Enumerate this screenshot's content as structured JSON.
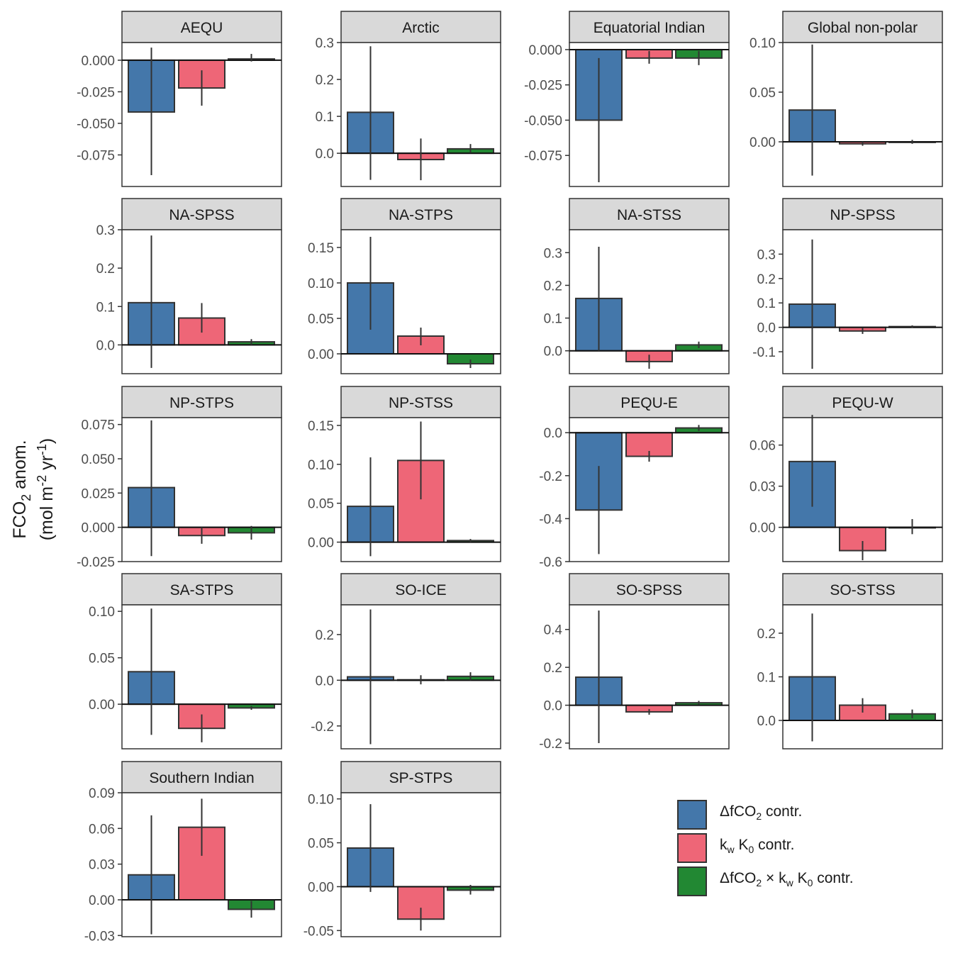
{
  "colors": {
    "dfco2": "#4477AA",
    "kwk0": "#EE6677",
    "interaction": "#228833",
    "strip_bg": "#D9D9D9",
    "frame": "#333333",
    "errorbar": "#333333"
  },
  "y_axis_title": {
    "line1": "FCO",
    "line1_sub": "2",
    "line1_rest": " anom.",
    "line2": "(mol m",
    "line2_sup1": "-2",
    "line2_mid": " yr",
    "line2_sup2": "-1",
    "line2_end": ")"
  },
  "legend": {
    "items": [
      {
        "key": "dfco2",
        "html": "ΔfCO<sub>2</sub> contr."
      },
      {
        "key": "kwk0",
        "html": "k<sub>w</sub> K<sub>0</sub> contr."
      },
      {
        "key": "interaction",
        "html": "ΔfCO<sub>2</sub> × k<sub>w</sub> K<sub>0</sub> contr."
      }
    ]
  },
  "chart_data": {
    "type": "bar",
    "series_names": [
      "ΔfCO2 contr.",
      "kw K0 contr.",
      "ΔfCO2 × kw K0 contr."
    ],
    "panels": [
      {
        "title": "AEQU",
        "ylim": [
          -0.1,
          0.014
        ],
        "ticks": [
          "0.000",
          "-0.025",
          "-0.050",
          "-0.075"
        ],
        "tick_values": [
          0,
          -0.025,
          -0.05,
          -0.075
        ],
        "values": [
          -0.041,
          -0.022,
          0.001
        ],
        "err_low": [
          -0.091,
          -0.036,
          -0.001
        ],
        "err_high": [
          0.01,
          -0.008,
          0.005
        ]
      },
      {
        "title": "Arctic",
        "ylim": [
          -0.09,
          0.3
        ],
        "ticks": [
          "0.3",
          "0.2",
          "0.1",
          "0.0"
        ],
        "tick_values": [
          0.3,
          0.2,
          0.1,
          0
        ],
        "values": [
          0.111,
          -0.017,
          0.012
        ],
        "err_low": [
          -0.072,
          -0.073,
          0.001
        ],
        "err_high": [
          0.29,
          0.04,
          0.025
        ]
      },
      {
        "title": "Equatorial Indian",
        "ylim": [
          -0.097,
          0.005
        ],
        "ticks": [
          "0.000",
          "-0.025",
          "-0.050",
          "-0.075"
        ],
        "tick_values": [
          0,
          -0.025,
          -0.05,
          -0.075
        ],
        "values": [
          -0.05,
          -0.006,
          -0.006
        ],
        "err_low": [
          -0.094,
          -0.01,
          -0.011
        ],
        "err_high": [
          -0.006,
          -0.001,
          -0.001
        ]
      },
      {
        "title": "Global non-polar",
        "ylim": [
          -0.045,
          0.1
        ],
        "ticks": [
          "0.10",
          "0.05",
          "0.00"
        ],
        "tick_values": [
          0.1,
          0.05,
          0
        ],
        "values": [
          0.032,
          -0.002,
          0.0
        ],
        "err_low": [
          -0.034,
          -0.004,
          -0.002
        ],
        "err_high": [
          0.098,
          0.0,
          0.002
        ]
      },
      {
        "title": "NA-SPSS",
        "ylim": [
          -0.075,
          0.3
        ],
        "ticks": [
          "0.3",
          "0.2",
          "0.1",
          "0.0"
        ],
        "tick_values": [
          0.3,
          0.2,
          0.1,
          0
        ],
        "values": [
          0.11,
          0.07,
          0.008
        ],
        "err_low": [
          -0.06,
          0.032,
          0.0
        ],
        "err_high": [
          0.285,
          0.109,
          0.015
        ]
      },
      {
        "title": "NA-STPS",
        "ylim": [
          -0.028,
          0.175
        ],
        "ticks": [
          "0.15",
          "0.10",
          "0.05",
          "0.00"
        ],
        "tick_values": [
          0.15,
          0.1,
          0.05,
          0
        ],
        "values": [
          0.1,
          0.025,
          -0.014
        ],
        "err_low": [
          0.034,
          0.012,
          -0.02
        ],
        "err_high": [
          0.165,
          0.037,
          -0.008
        ]
      },
      {
        "title": "NA-STSS",
        "ylim": [
          -0.07,
          0.37
        ],
        "ticks": [
          "0.3",
          "0.2",
          "0.1",
          "0.0"
        ],
        "tick_values": [
          0.3,
          0.2,
          0.1,
          0
        ],
        "values": [
          0.16,
          -0.033,
          0.018
        ],
        "err_low": [
          0.0,
          -0.055,
          0.008
        ],
        "err_high": [
          0.318,
          -0.012,
          0.028
        ]
      },
      {
        "title": "NP-SPSS",
        "ylim": [
          -0.19,
          0.4
        ],
        "ticks": [
          "0.3",
          "0.2",
          "0.1",
          "0.0",
          "-0.1"
        ],
        "tick_values": [
          0.3,
          0.2,
          0.1,
          0,
          -0.1
        ],
        "values": [
          0.095,
          -0.015,
          0.003
        ],
        "err_low": [
          -0.17,
          -0.027,
          -0.002
        ],
        "err_high": [
          0.36,
          -0.003,
          0.008
        ]
      },
      {
        "title": "NP-STPS",
        "ylim": [
          -0.025,
          0.08
        ],
        "ticks": [
          "0.075",
          "0.050",
          "0.025",
          "0.000",
          "-0.025"
        ],
        "tick_values": [
          0.075,
          0.05,
          0.025,
          0,
          -0.025
        ],
        "values": [
          0.029,
          -0.006,
          -0.004
        ],
        "err_low": [
          -0.021,
          -0.012,
          -0.009
        ],
        "err_high": [
          0.078,
          0.0,
          0.001
        ]
      },
      {
        "title": "NP-STSS",
        "ylim": [
          -0.025,
          0.16
        ],
        "ticks": [
          "0.15",
          "0.10",
          "0.05",
          "0.00"
        ],
        "tick_values": [
          0.15,
          0.1,
          0.05,
          0
        ],
        "values": [
          0.046,
          0.105,
          0.002
        ],
        "err_low": [
          -0.018,
          0.055,
          0.0
        ],
        "err_high": [
          0.109,
          0.155,
          0.004
        ]
      },
      {
        "title": "PEQU-E",
        "ylim": [
          -0.6,
          0.07
        ],
        "ticks": [
          "0.0",
          "-0.2",
          "-0.4",
          "-0.6"
        ],
        "tick_values": [
          0,
          -0.2,
          -0.4,
          -0.6
        ],
        "values": [
          -0.36,
          -0.11,
          0.022
        ],
        "err_low": [
          -0.565,
          -0.135,
          0.008
        ],
        "err_high": [
          -0.155,
          -0.085,
          0.036
        ]
      },
      {
        "title": "PEQU-W",
        "ylim": [
          -0.025,
          0.08
        ],
        "ticks": [
          "0.06",
          "0.03",
          "0.00"
        ],
        "tick_values": [
          0.06,
          0.03,
          0
        ],
        "values": [
          0.048,
          -0.017,
          0.0
        ],
        "err_low": [
          0.015,
          -0.024,
          -0.005
        ],
        "err_high": [
          0.082,
          -0.01,
          0.006
        ]
      },
      {
        "title": "SA-STPS",
        "ylim": [
          -0.048,
          0.107
        ],
        "ticks": [
          "0.10",
          "0.05",
          "0.00"
        ],
        "tick_values": [
          0.1,
          0.05,
          0
        ],
        "values": [
          0.035,
          -0.026,
          -0.004
        ],
        "err_low": [
          -0.033,
          -0.041,
          -0.006
        ],
        "err_high": [
          0.103,
          -0.011,
          -0.002
        ]
      },
      {
        "title": "SO-ICE",
        "ylim": [
          -0.3,
          0.33
        ],
        "ticks": [
          "0.2",
          "0.0",
          "-0.2"
        ],
        "tick_values": [
          0.2,
          0,
          -0.2
        ],
        "values": [
          0.015,
          0.002,
          0.017
        ],
        "err_low": [
          -0.28,
          -0.018,
          0.0
        ],
        "err_high": [
          0.31,
          0.022,
          0.035
        ]
      },
      {
        "title": "SO-SPSS",
        "ylim": [
          -0.23,
          0.53
        ],
        "ticks": [
          "0.4",
          "0.2",
          "0.0",
          "-0.2"
        ],
        "tick_values": [
          0.4,
          0.2,
          0,
          -0.2
        ],
        "values": [
          0.148,
          -0.035,
          0.013
        ],
        "err_low": [
          -0.2,
          -0.05,
          0.003
        ],
        "err_high": [
          0.5,
          -0.02,
          0.023
        ]
      },
      {
        "title": "SO-STSS",
        "ylim": [
          -0.065,
          0.265
        ],
        "ticks": [
          "0.2",
          "0.1",
          "0.0"
        ],
        "tick_values": [
          0.2,
          0.1,
          0
        ],
        "values": [
          0.1,
          0.035,
          0.015
        ],
        "err_low": [
          -0.048,
          0.018,
          0.005
        ],
        "err_high": [
          0.245,
          0.051,
          0.025
        ]
      },
      {
        "title": "Southern Indian",
        "ylim": [
          -0.031,
          0.09
        ],
        "ticks": [
          "0.09",
          "0.06",
          "0.03",
          "0.00",
          "-0.03"
        ],
        "tick_values": [
          0.09,
          0.06,
          0.03,
          0,
          -0.03
        ],
        "values": [
          0.021,
          0.061,
          -0.008
        ],
        "err_low": [
          -0.029,
          0.037,
          -0.015
        ],
        "err_high": [
          0.071,
          0.085,
          -0.001
        ]
      },
      {
        "title": "SP-STPS",
        "ylim": [
          -0.057,
          0.107
        ],
        "ticks": [
          "0.10",
          "0.05",
          "0.00",
          "-0.05"
        ],
        "tick_values": [
          0.1,
          0.05,
          0,
          -0.05
        ],
        "values": [
          0.044,
          -0.037,
          -0.004
        ],
        "err_low": [
          -0.006,
          -0.05,
          -0.009
        ],
        "err_high": [
          0.094,
          -0.024,
          0.002
        ]
      }
    ]
  }
}
